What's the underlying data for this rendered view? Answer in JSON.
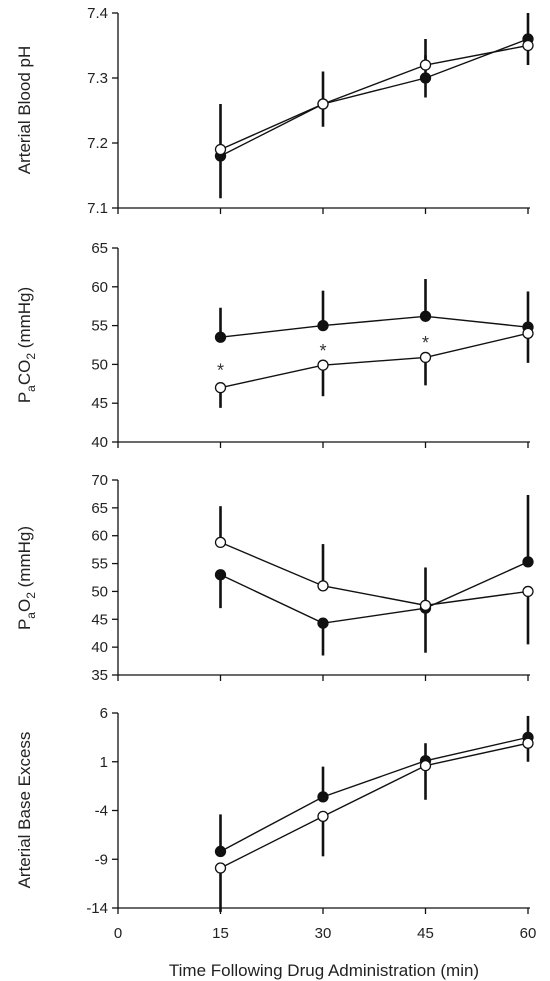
{
  "chart_data": [
    {
      "type": "line",
      "panel": "ph",
      "ylabel_main": "Arterial Blood pH",
      "ylim": [
        7.1,
        7.4
      ],
      "yticks": [
        "7.1",
        "7.2",
        "7.3",
        "7.4"
      ],
      "x": [
        15,
        30,
        45,
        60
      ],
      "series": [
        {
          "marker": "filled",
          "values": [
            7.18,
            7.26,
            7.3,
            7.36
          ],
          "err_up": [
            0.08,
            0.05,
            0.035,
            0.04
          ],
          "err_down": [
            0.065,
            0.035,
            0.03,
            0.04
          ]
        },
        {
          "marker": "open",
          "values": [
            7.19,
            7.26,
            7.32,
            7.35
          ],
          "err_up": [
            0.0,
            0.0,
            0.04,
            0.0
          ],
          "err_down": [
            0.0,
            0.0,
            0.0,
            0.0
          ]
        }
      ],
      "annotations": []
    },
    {
      "type": "line",
      "panel": "paco2",
      "ylabel_main": "P",
      "ylabel_sub1": "a",
      "ylabel_mid": "CO",
      "ylabel_sub2": "2",
      "ylabel_end": " (mmHg)",
      "ylim": [
        40,
        65
      ],
      "yticks": [
        "40",
        "45",
        "50",
        "55",
        "60",
        "65"
      ],
      "x": [
        15,
        30,
        45,
        60
      ],
      "series": [
        {
          "marker": "filled",
          "values": [
            53.5,
            55.0,
            56.2,
            54.8
          ],
          "err_up": [
            3.8,
            4.5,
            4.8,
            4.6
          ],
          "err_down": [
            0,
            0,
            0,
            0
          ]
        },
        {
          "marker": "open",
          "values": [
            47.0,
            49.9,
            50.9,
            54.0
          ],
          "err_up": [
            0,
            0,
            0,
            0
          ],
          "err_down": [
            2.6,
            4.0,
            3.6,
            3.8
          ]
        }
      ],
      "annotations": [
        {
          "x": 15,
          "y": 49.5,
          "text": "*"
        },
        {
          "x": 30,
          "y": 52.0,
          "text": "*"
        },
        {
          "x": 45,
          "y": 53.0,
          "text": "*"
        }
      ]
    },
    {
      "type": "line",
      "panel": "pao2",
      "ylabel_main": "P",
      "ylabel_sub1": "a",
      "ylabel_mid": "O",
      "ylabel_sub2": "2",
      "ylabel_end": " (mmHg)",
      "ylim": [
        35,
        70
      ],
      "yticks": [
        "35",
        "40",
        "45",
        "50",
        "55",
        "60",
        "65",
        "70"
      ],
      "x": [
        15,
        30,
        45,
        60
      ],
      "series": [
        {
          "marker": "filled",
          "values": [
            53.0,
            44.3,
            47.0,
            55.3
          ],
          "err_up": [
            0,
            0,
            0,
            12.0
          ],
          "err_down": [
            6.0,
            5.8,
            8.0,
            0
          ]
        },
        {
          "marker": "open",
          "values": [
            58.8,
            51.0,
            47.5,
            50.0
          ],
          "err_up": [
            6.5,
            7.5,
            6.8,
            0
          ],
          "err_down": [
            0,
            0,
            0,
            9.5
          ]
        }
      ],
      "annotations": []
    },
    {
      "type": "line",
      "panel": "be",
      "ylabel_main": "Arterial Base Excess",
      "ylim": [
        -14,
        6
      ],
      "yticks": [
        "-14",
        "-9",
        "-4",
        "1",
        "6"
      ],
      "x": [
        15,
        30,
        45,
        60
      ],
      "xlim": [
        0,
        60
      ],
      "xticks": [
        "0",
        "15",
        "30",
        "45",
        "60"
      ],
      "xlabel": "Time Following Drug Administration (min)",
      "series": [
        {
          "marker": "filled",
          "values": [
            -8.2,
            -2.6,
            1.1,
            3.5
          ],
          "err_up": [
            3.8,
            3.1,
            1.8,
            2.2
          ],
          "err_down": [
            0,
            0,
            0,
            0
          ]
        },
        {
          "marker": "open",
          "values": [
            -9.9,
            -4.6,
            0.6,
            2.9
          ],
          "err_up": [
            0,
            0,
            0,
            0
          ],
          "err_down": [
            4.5,
            4.1,
            3.5,
            1.9
          ]
        }
      ],
      "annotations": []
    }
  ]
}
